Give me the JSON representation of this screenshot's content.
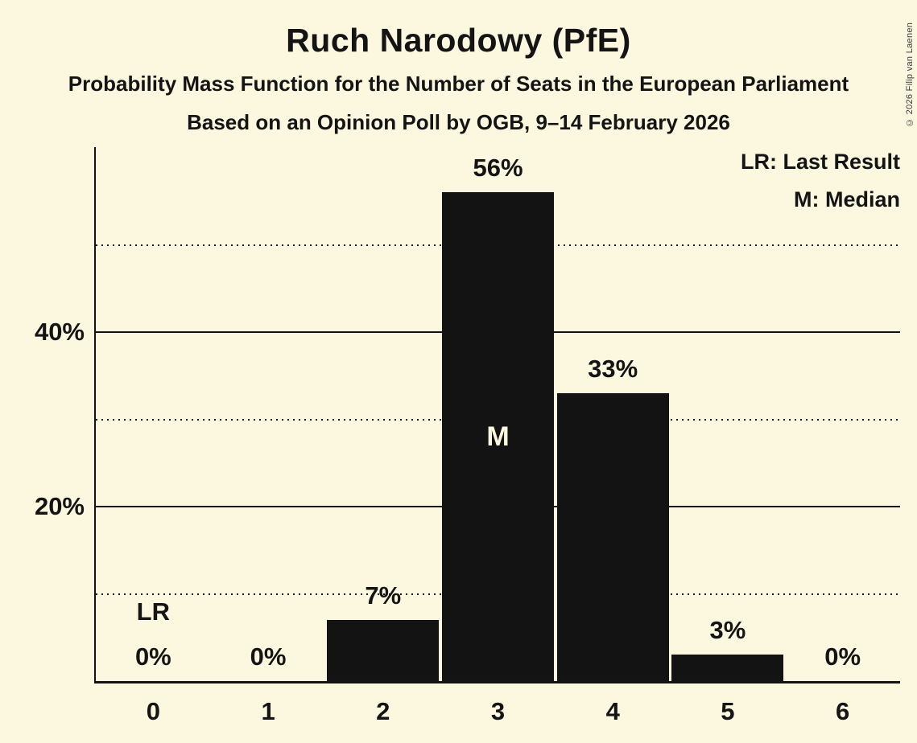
{
  "title": "Ruch Narodowy (PfE)",
  "subtitle": "Probability Mass Function for the Number of Seats in the European Parliament",
  "source_line": "Based on an Opinion Poll by OGB, 9–14 February 2026",
  "copyright": "© 2026 Filip van Laenen",
  "legend": {
    "last_result": "LR: Last Result",
    "median": "M: Median"
  },
  "colors": {
    "background": "#FCF7DF",
    "bar": "#131313",
    "text": "#141414",
    "median_label_text": "#FCF7DF",
    "copyright_text": "#3C3C3C"
  },
  "chart_data": {
    "type": "bar",
    "title": "Ruch Narodowy (PfE)",
    "categories": [
      "0",
      "1",
      "2",
      "3",
      "4",
      "5",
      "6"
    ],
    "values": [
      0,
      0,
      7,
      56,
      33,
      3,
      0
    ],
    "bar_labels": [
      "0%",
      "0%",
      "7%",
      "56%",
      "33%",
      "3%",
      "0%"
    ],
    "ylim": [
      0,
      61.2
    ],
    "y_axis_ticks": [
      {
        "value": 20,
        "label": "20%"
      },
      {
        "value": 40,
        "label": "40%"
      }
    ],
    "dotted_gridlines": [
      10,
      30,
      50
    ],
    "annotations": [
      {
        "category": "0",
        "index": 0,
        "text": "LR",
        "meaning": "Last Result",
        "placement": "above-value-label"
      },
      {
        "category": "3",
        "index": 3,
        "text": "M",
        "meaning": "Median",
        "placement": "inside-bar"
      }
    ],
    "legend_position": "top-right",
    "grid": "horizontal-only"
  }
}
